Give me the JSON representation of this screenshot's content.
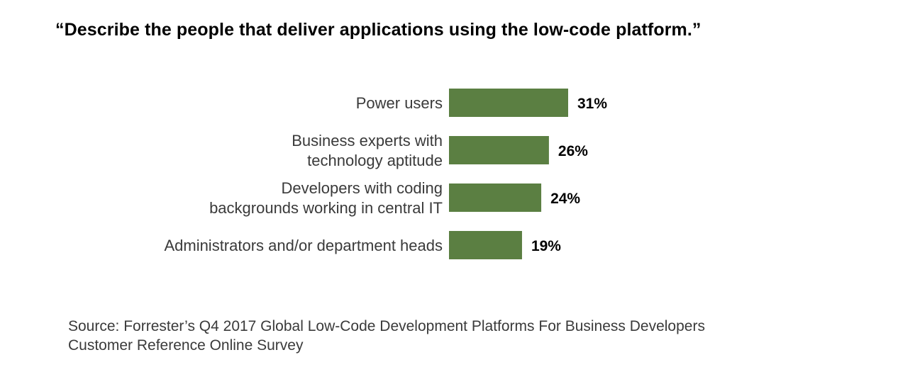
{
  "title": "“Describe the people that deliver applications using the low-code platform.”",
  "source": {
    "line1": "Source: Forrester’s Q4 2017 Global Low-Code Development Platforms For Business Developers",
    "line2": "Customer Reference Online Survey"
  },
  "colors": {
    "bar": "#5b7f42"
  },
  "chart_data": {
    "type": "bar",
    "orientation": "horizontal",
    "categories": [
      [
        "Power users"
      ],
      [
        "Business experts with",
        "technology aptitude"
      ],
      [
        "Developers with coding",
        "backgrounds working in central IT"
      ],
      [
        "Administrators and/or department heads"
      ]
    ],
    "values": [
      31,
      26,
      24,
      19
    ],
    "value_labels": [
      "31%",
      "26%",
      "24%",
      "19%"
    ],
    "unit": "%",
    "xlim": [
      0,
      31
    ],
    "grid": false,
    "legend": "none",
    "xlabel": "",
    "ylabel": ""
  }
}
